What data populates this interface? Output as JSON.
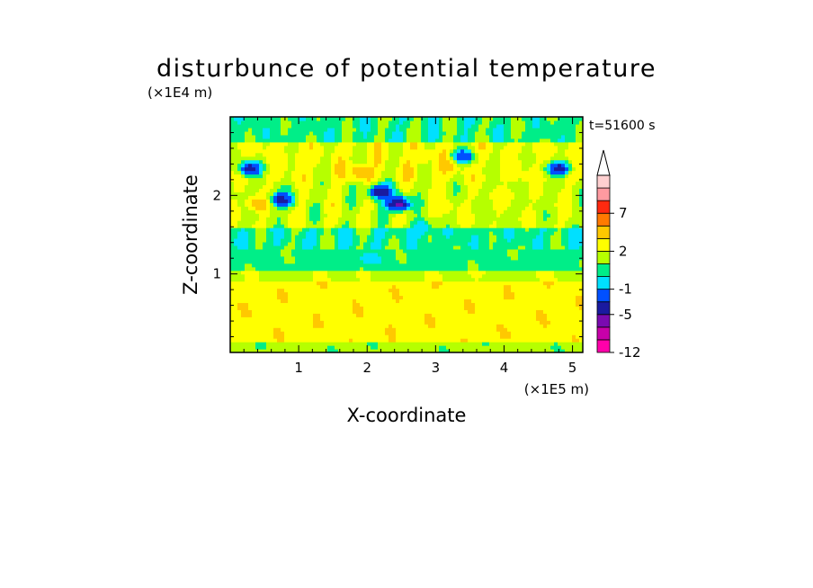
{
  "chart_data": {
    "type": "heatmap",
    "title": "disturbunce of potential temperature",
    "xlabel": "X-coordinate",
    "ylabel": "Z-coordinate",
    "x_unit": "(×1E5 m)",
    "y_unit": "(×1E4 m)",
    "time_label": "t=51600 s",
    "xlim": [
      0,
      5.15
    ],
    "ylim": [
      0,
      3.0
    ],
    "x_ticks": [
      1,
      2,
      3,
      4,
      5
    ],
    "x_tick_labels": [
      "1",
      "2",
      "3",
      "4",
      "5"
    ],
    "y_ticks": [
      1,
      2
    ],
    "y_tick_labels": [
      "1",
      "2"
    ],
    "colorbar": {
      "levels": [
        -12,
        -9,
        -7,
        -5,
        -3,
        -1,
        0,
        1,
        2,
        3,
        5,
        7,
        9,
        11
      ],
      "colors": [
        "#ff00aa",
        "#c800aa",
        "#7a0ab0",
        "#1a1aa0",
        "#0050ff",
        "#00e0ff",
        "#00ee88",
        "#b6ff00",
        "#ffff00",
        "#ffc800",
        "#ff7a00",
        "#ff2a10",
        "#ff9aa0",
        "#ffd0d0"
      ],
      "extend": "max",
      "tick_labels": [
        {
          "label": "-12",
          "level": -12
        },
        {
          "label": "-5",
          "level": -5
        },
        {
          "label": "-1",
          "level": -1
        },
        {
          "label": "2",
          "level": 2
        },
        {
          "label": "7",
          "level": 7
        }
      ]
    },
    "field_features": [
      {
        "x": 2.45,
        "z": 1.9,
        "value": -6
      },
      {
        "x": 0.75,
        "z": 1.95,
        "value": -4
      },
      {
        "x": 1.9,
        "z": 2.3,
        "value": 4
      },
      {
        "x": 2.2,
        "z": 2.05,
        "value": -5
      },
      {
        "x": 3.1,
        "z": 1.85,
        "value": 3
      },
      {
        "x": 3.2,
        "z": 2.4,
        "value": 4
      },
      {
        "x": 3.4,
        "z": 2.5,
        "value": -3
      },
      {
        "x": 4.8,
        "z": 2.35,
        "value": -4
      },
      {
        "x": 0.3,
        "z": 2.35,
        "value": -4
      },
      {
        "x": 0.4,
        "z": 1.9,
        "value": 4
      },
      {
        "x": 2.5,
        "z": 0.5,
        "value": 3
      },
      {
        "x": 1.5,
        "z": 0.4,
        "value": 3
      },
      {
        "x": 4.3,
        "z": 0.5,
        "value": 3
      },
      {
        "x": 2.8,
        "z": 1.6,
        "value": -1
      },
      {
        "x": 2.8,
        "z": 2.5,
        "value": 3
      },
      {
        "x": 1.1,
        "z": 2.5,
        "value": 3
      },
      {
        "x": 4.0,
        "z": 2.0,
        "value": 3
      },
      {
        "x": 2.0,
        "z": 1.2,
        "value": -0.5
      }
    ]
  }
}
